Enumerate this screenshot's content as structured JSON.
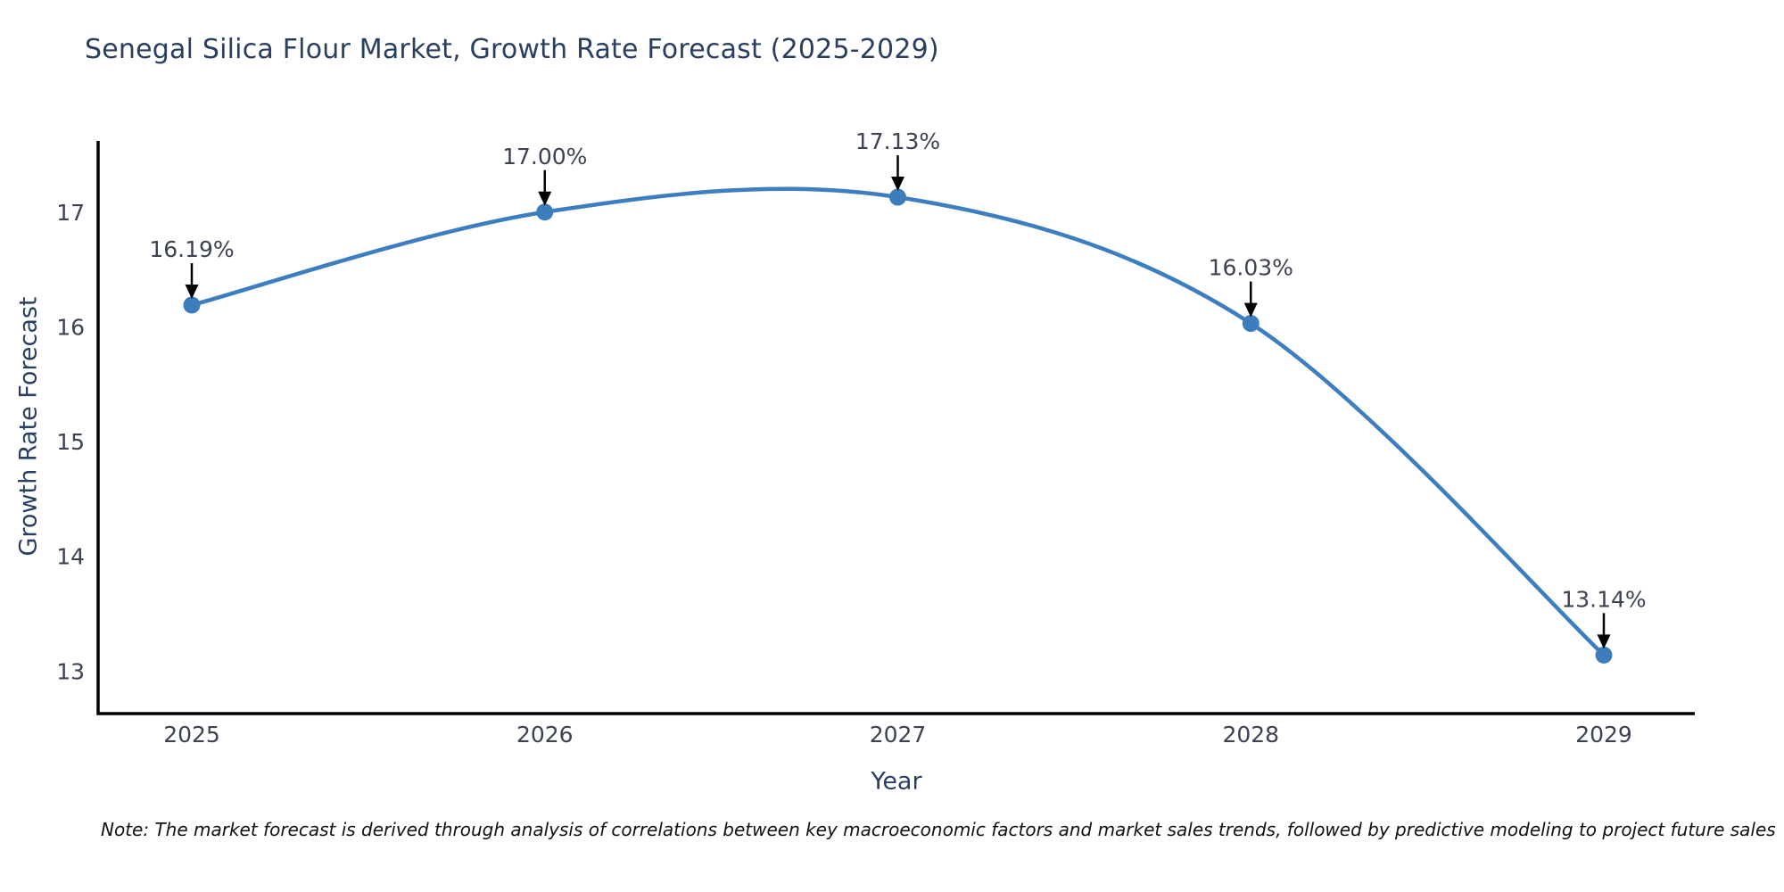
{
  "note": {
    "text": "Note: The market forecast is derived through analysis of correlations between key macroeconomic factors and market sales trends, followed by predictive modeling to project future sales"
  },
  "chart_data": {
    "type": "line",
    "title": "Senegal Silica Flour Market, Growth Rate Forecast (2025-2029)",
    "xlabel": "Year",
    "ylabel": "Growth Rate Forecast",
    "x": [
      2025,
      2026,
      2027,
      2028,
      2029
    ],
    "categories": [
      "2025",
      "2026",
      "2027",
      "2028",
      "2029"
    ],
    "values": [
      16.19,
      17.0,
      17.13,
      16.03,
      13.14
    ],
    "point_labels": [
      "16.19%",
      "17.00%",
      "17.13%",
      "16.03%",
      "13.14%"
    ],
    "yticks": [
      13,
      14,
      15,
      16,
      17
    ],
    "ytick_labels": [
      "13",
      "14",
      "15",
      "16",
      "17"
    ],
    "ylim": [
      12.63,
      17.62
    ],
    "grid": false,
    "smooth": true,
    "legend": "none",
    "line_color": "#3c7ebf",
    "marker_color": "#3d7dbc",
    "arrow_color": "#000000",
    "spine_color": "#000000",
    "tick_text_color": "#3b4252",
    "annotation_text_color": "#3b4252"
  }
}
